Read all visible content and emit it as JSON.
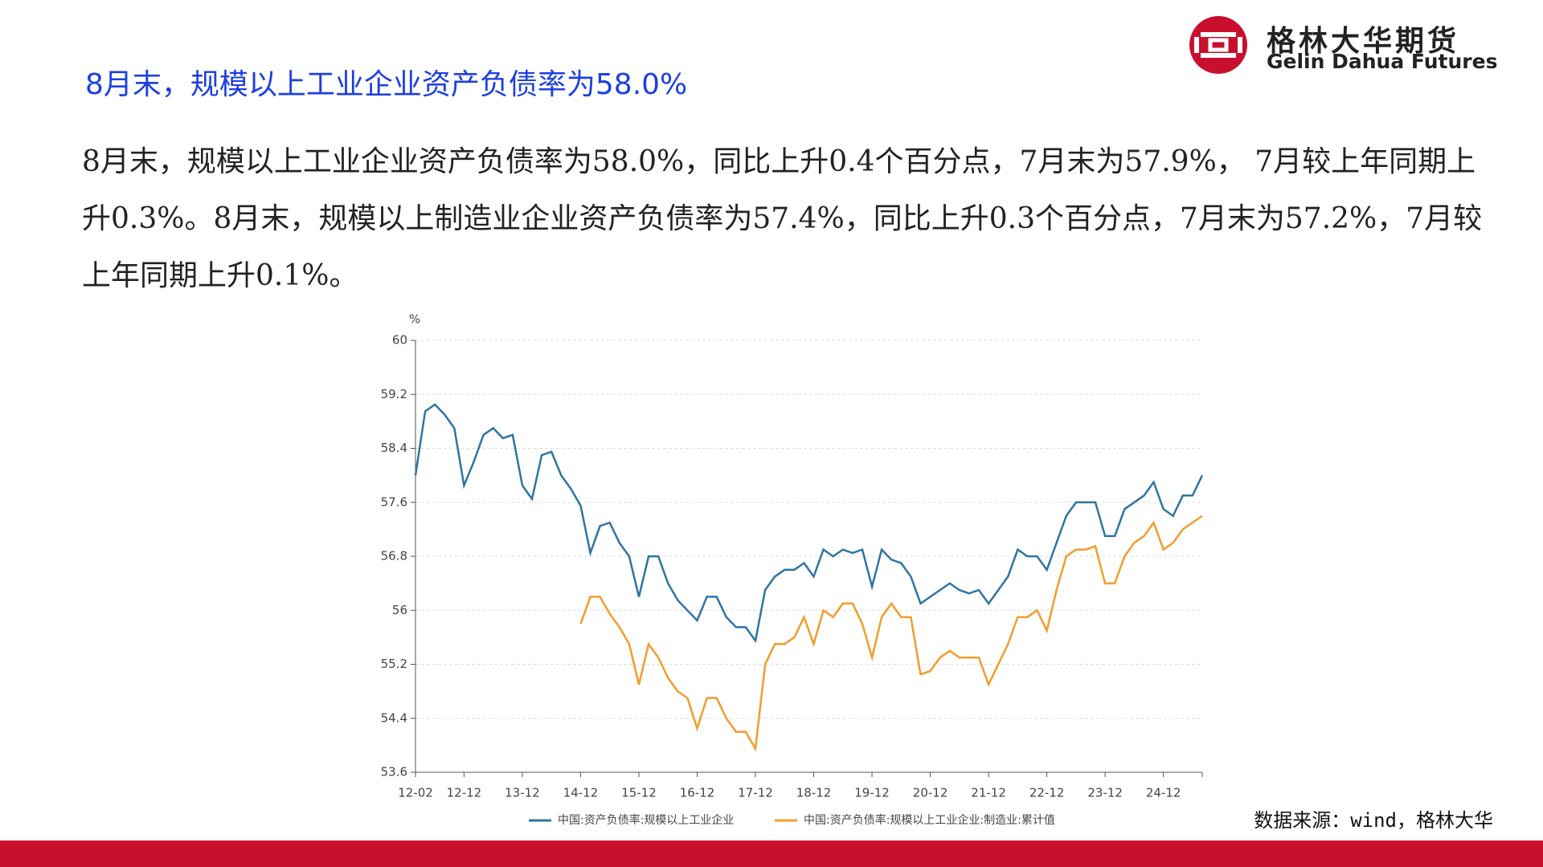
{
  "header": {
    "title": "8月末，规模以上工业企业资产负债率为58.0%"
  },
  "logo": {
    "name_cn": "格林大华期货",
    "name_en": "Gelin Dahua Futures"
  },
  "paragraph": "8月末，规模以上工业企业资产负债率为58.0%，同比上升0.4个百分点，7月末为57.9%， 7月较上年同期上升0.3%。8月末，规模以上制造业企业资产负债率为57.4%，同比上升0.3个百分点，7月末为57.2%，7月较上年同期上升0.1%。",
  "source": "数据来源：wind，格林大华",
  "chart_data": {
    "type": "line",
    "y_label": "%",
    "categories": [
      "12-02",
      null,
      null,
      null,
      null,
      "12-12",
      null,
      null,
      null,
      null,
      null,
      "13-12",
      null,
      null,
      null,
      null,
      null,
      "14-12",
      null,
      null,
      null,
      null,
      null,
      "15-12",
      null,
      null,
      null,
      null,
      null,
      "16-12",
      null,
      null,
      null,
      null,
      null,
      "17-12",
      null,
      null,
      null,
      null,
      null,
      "18-12",
      null,
      null,
      null,
      null,
      null,
      "19-12",
      null,
      null,
      null,
      null,
      null,
      "20-12",
      null,
      null,
      null,
      null,
      null,
      "21-12",
      null,
      null,
      null,
      null,
      null,
      "22-12",
      null,
      null,
      null,
      null,
      null,
      "23-12",
      null,
      null,
      null,
      null,
      null,
      "24-12",
      null,
      null,
      null,
      null
    ],
    "series": [
      {
        "name": "中国:资产负债率:规模以上工业企业",
        "color": "#2e75a3",
        "values": [
          58.0,
          58.95,
          59.05,
          58.9,
          58.7,
          57.85,
          58.2,
          58.6,
          58.7,
          58.55,
          58.6,
          57.85,
          57.65,
          58.3,
          58.35,
          58.0,
          57.8,
          57.55,
          56.85,
          57.25,
          57.3,
          57.0,
          56.8,
          56.2,
          56.8,
          56.8,
          56.4,
          56.15,
          56.0,
          55.85,
          56.2,
          56.2,
          55.9,
          55.75,
          55.75,
          55.55,
          56.3,
          56.5,
          56.6,
          56.6,
          56.7,
          56.5,
          56.9,
          56.8,
          56.9,
          56.85,
          56.9,
          56.35,
          56.9,
          56.75,
          56.7,
          56.5,
          56.1,
          56.2,
          56.3,
          56.4,
          56.3,
          56.25,
          56.3,
          56.1,
          56.3,
          56.5,
          56.9,
          56.8,
          56.8,
          56.6,
          57.0,
          57.4,
          57.6,
          57.6,
          57.6,
          57.1,
          57.1,
          57.5,
          57.6,
          57.7,
          57.9,
          57.5,
          57.4,
          57.7,
          57.7,
          58.0
        ]
      },
      {
        "name": "中国:资产负债率:规模以上工业企业:制造业:累计值",
        "color": "#f39c2b",
        "values": [
          null,
          null,
          null,
          null,
          null,
          null,
          null,
          null,
          null,
          null,
          null,
          null,
          null,
          null,
          null,
          null,
          null,
          55.8,
          56.2,
          56.2,
          55.95,
          55.75,
          55.5,
          54.9,
          55.5,
          55.3,
          55.0,
          54.8,
          54.7,
          54.25,
          54.7,
          54.7,
          54.4,
          54.2,
          54.2,
          53.95,
          55.2,
          55.5,
          55.5,
          55.6,
          55.9,
          55.5,
          56.0,
          55.9,
          56.1,
          56.1,
          55.8,
          55.3,
          55.9,
          56.1,
          55.9,
          55.9,
          55.05,
          55.1,
          55.3,
          55.4,
          55.3,
          55.3,
          55.3,
          54.9,
          55.2,
          55.5,
          55.9,
          55.9,
          56.0,
          55.7,
          56.3,
          56.8,
          56.9,
          56.9,
          56.95,
          56.4,
          56.4,
          56.8,
          57.0,
          57.1,
          57.3,
          56.9,
          57.0,
          57.2,
          57.3,
          57.4
        ]
      }
    ],
    "ylim": [
      53.6,
      60
    ],
    "yticks": [
      53.6,
      54.4,
      55.2,
      56,
      56.8,
      57.6,
      58.4,
      59.2,
      60
    ],
    "grid": true
  }
}
